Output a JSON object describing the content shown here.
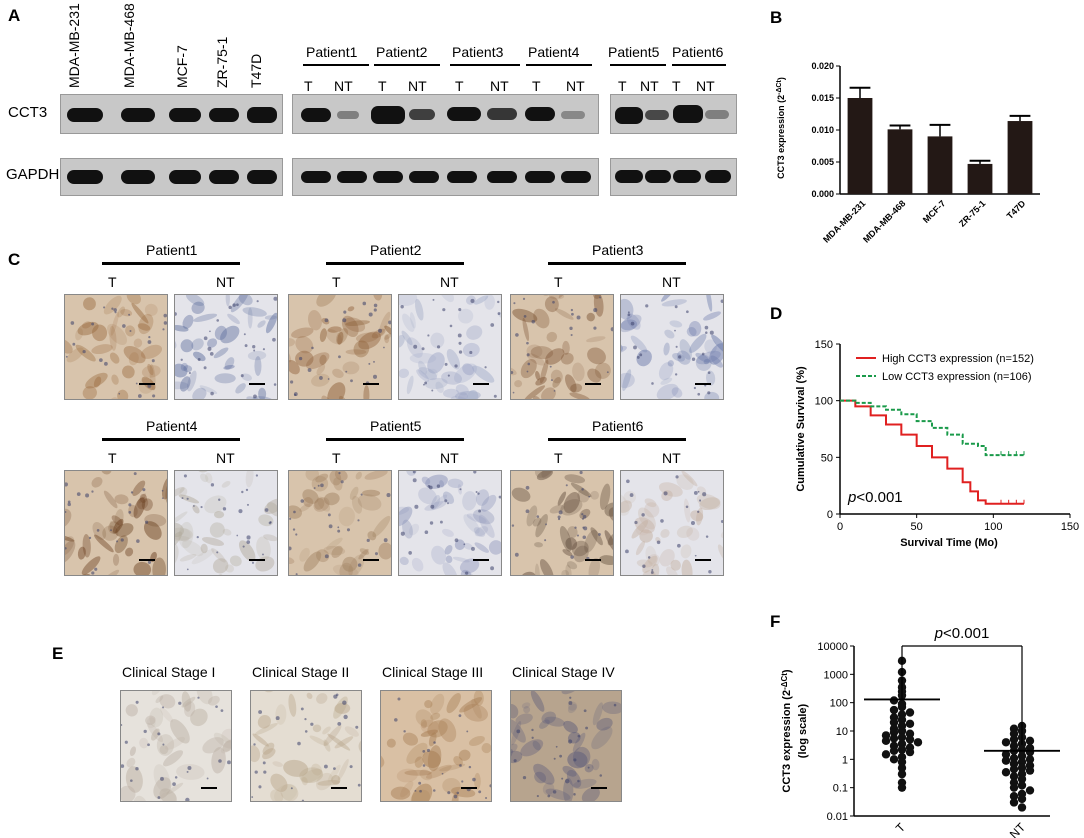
{
  "panels": {
    "A": "A",
    "B": "B",
    "C": "C",
    "D": "D",
    "E": "E",
    "F": "F"
  },
  "panelA": {
    "cell_lines": [
      "MDA-MB-231",
      "MDA-MB-468",
      "MCF-7",
      "ZR-75-1",
      "T47D"
    ],
    "patients": [
      "Patient1",
      "Patient2",
      "Patient3",
      "Patient4",
      "Patient5",
      "Patient6"
    ],
    "t_label": "T",
    "nt_label": "NT",
    "row_labels": [
      "CCT3",
      "GAPDH"
    ]
  },
  "panelC": {
    "patients": [
      "Patient1",
      "Patient2",
      "Patient3",
      "Patient4",
      "Patient5",
      "Patient6"
    ],
    "t_label": "T",
    "nt_label": "NT"
  },
  "panelE": {
    "stages": [
      "Clinical Stage I",
      "Clinical Stage II",
      "Clinical Stage III",
      "Clinical Stage IV"
    ]
  },
  "chart_data": [
    {
      "panel": "B",
      "type": "bar",
      "categories": [
        "MDA-MB-231",
        "MDA-MB-468",
        "MCF-7",
        "ZR-75-1",
        "T47D"
      ],
      "values": [
        0.015,
        0.0101,
        0.009,
        0.0047,
        0.0114
      ],
      "errors": [
        0.0016,
        0.0006,
        0.0018,
        0.0005,
        0.0008
      ],
      "ylabel": "CCT3 expression (2^-ΔCt)",
      "ylabel_main": "CCT3 expression (2",
      "ylabel_sup": "-ΔCt",
      "ylabel_end": ")",
      "ylim": [
        0,
        0.02
      ],
      "yticks": [
        "0.000",
        "0.005",
        "0.010",
        "0.015",
        "0.020"
      ],
      "bar_color": "#231815"
    },
    {
      "panel": "D",
      "type": "line",
      "xlabel": "Survival Time (Mo)",
      "ylabel": "Cumulative Survival (%)",
      "xlim": [
        0,
        150
      ],
      "ylim": [
        0,
        150
      ],
      "xticks": [
        "0",
        "50",
        "100",
        "150"
      ],
      "yticks": [
        "0",
        "50",
        "100",
        "150"
      ],
      "annotation": "p<0.001",
      "annotation_p": "p",
      "annotation_rest": "<0.001",
      "legend_position": "top-right",
      "series": [
        {
          "name": "High CCT3 expression (n=152)",
          "color": "#e02020",
          "style": "solid",
          "x": [
            0,
            10,
            20,
            30,
            40,
            50,
            60,
            70,
            80,
            85,
            90,
            95,
            100,
            110,
            120
          ],
          "y": [
            100,
            95,
            87,
            79,
            70,
            60,
            50,
            40,
            28,
            20,
            12,
            9,
            9,
            9,
            9
          ]
        },
        {
          "name": "Low CCT3 expression (n=106)",
          "color": "#1a9a4a",
          "style": "dashed",
          "x": [
            0,
            10,
            20,
            30,
            40,
            50,
            60,
            70,
            80,
            90,
            95,
            100,
            110,
            120
          ],
          "y": [
            100,
            98,
            95,
            92,
            88,
            82,
            76,
            70,
            62,
            60,
            52,
            52,
            52,
            52
          ]
        }
      ]
    },
    {
      "panel": "F",
      "type": "scatter",
      "categories": [
        "T",
        "NT"
      ],
      "ylabel_line1": "CCT3 expression (2",
      "ylabel_sup": "-ΔCt",
      "ylabel_end": ")",
      "ylabel_line2": "(log scale)",
      "yscale": "log",
      "ylim": [
        0.01,
        10000
      ],
      "yticks": [
        "0.01",
        "0.1",
        "1",
        "10",
        "100",
        "1000",
        "10000"
      ],
      "annotation_p": "p",
      "annotation_rest": "<0.001",
      "means": [
        130,
        2
      ],
      "T_values": [
        3000,
        1200,
        600,
        350,
        250,
        180,
        120,
        90,
        70,
        55,
        45,
        38,
        30,
        25,
        20,
        18,
        15,
        12,
        10,
        9,
        8,
        7,
        6,
        5.5,
        5,
        4.5,
        4,
        3.5,
        3,
        2.6,
        2.2,
        2,
        1.8,
        1.5,
        1.2,
        1,
        0.8,
        0.5,
        0.3,
        0.15,
        0.1
      ],
      "NT_values": [
        15,
        12,
        10,
        8,
        6,
        5,
        4.5,
        4,
        3.5,
        3,
        2.5,
        2.2,
        2,
        1.8,
        1.5,
        1.3,
        1.1,
        1,
        0.9,
        0.8,
        0.7,
        0.6,
        0.5,
        0.45,
        0.4,
        0.35,
        0.3,
        0.25,
        0.2,
        0.15,
        0.12,
        0.1,
        0.08,
        0.06,
        0.05,
        0.04,
        0.03,
        0.02
      ]
    }
  ]
}
